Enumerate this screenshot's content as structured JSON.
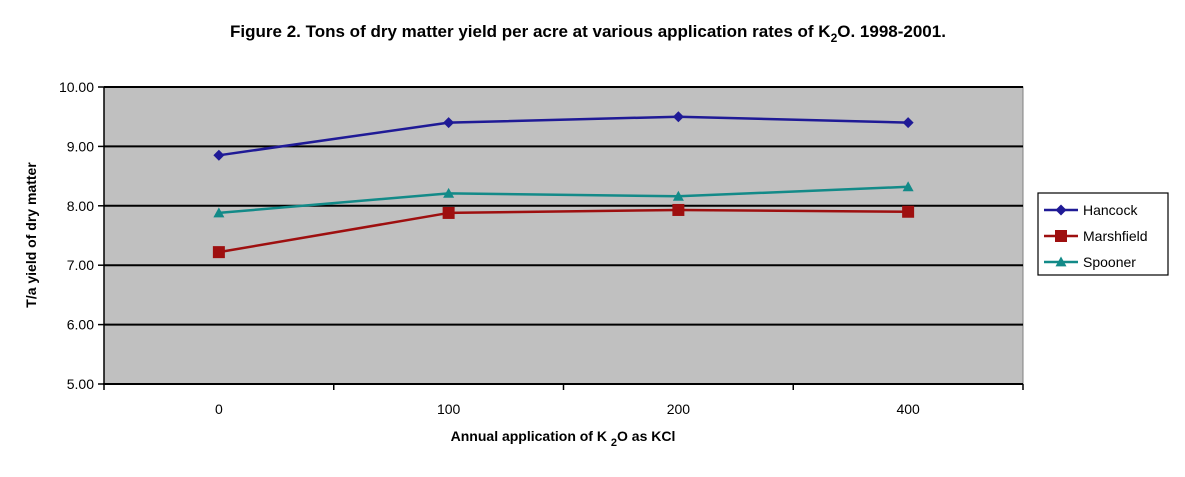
{
  "chart_data": {
    "type": "line",
    "title": {
      "before": "Figure 2. Tons of dry matter yield per acre at various application rates of K",
      "sub": "2",
      "after": "O. 1998-2001."
    },
    "xlabel": {
      "before": "Annual application of K ",
      "sub": "2",
      "after": "O as KCl"
    },
    "ylabel": "T/a yield of dry matter",
    "categories": [
      "0",
      "100",
      "200",
      "400"
    ],
    "ylim": [
      5.0,
      10.0
    ],
    "yticks": [
      "5.00",
      "6.00",
      "7.00",
      "8.00",
      "9.00",
      "10.00"
    ],
    "ytick_values": [
      5,
      6,
      7,
      8,
      9,
      10
    ],
    "grid": true,
    "plot_background": "#c0c0c0",
    "legend_position": "right",
    "series": [
      {
        "name": "Hancock",
        "values": [
          8.85,
          9.4,
          9.5,
          9.4
        ],
        "color": "#1f1a96",
        "marker": "diamond"
      },
      {
        "name": "Marshfield",
        "values": [
          7.22,
          7.88,
          7.93,
          7.9
        ],
        "color": "#9e0f0f",
        "marker": "square"
      },
      {
        "name": "Spooner",
        "values": [
          7.88,
          8.21,
          8.16,
          8.32
        ],
        "color": "#128a88",
        "marker": "triangle"
      }
    ]
  }
}
